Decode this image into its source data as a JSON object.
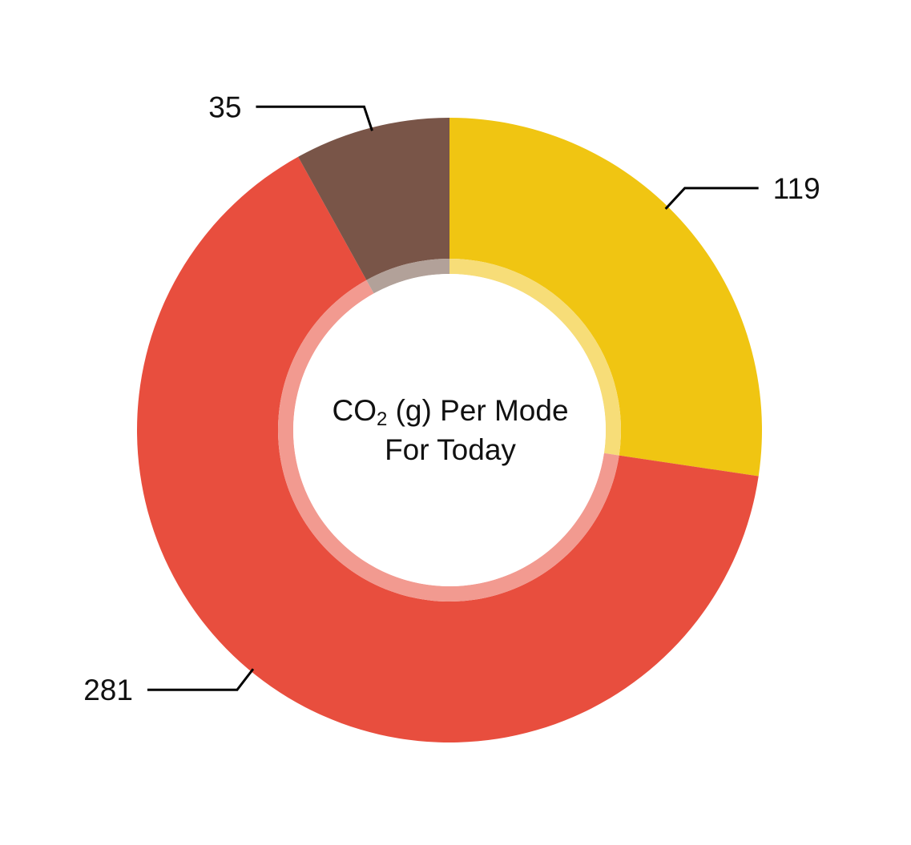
{
  "chart_data": {
    "type": "pie",
    "variant": "donut",
    "title_prefix": "CO",
    "title_subscript": "2",
    "title_suffix": " (g) Per Mode",
    "title_line2": "For Today",
    "slices": [
      {
        "value": 119,
        "label": "119",
        "color": "#F0C512",
        "inner_color": "#F7DD78"
      },
      {
        "value": 281,
        "label": "281",
        "color": "#E84E3E",
        "inner_color": "#F29A90"
      },
      {
        "value": 35,
        "label": "35",
        "color": "#795548",
        "inner_color": "#B2A199"
      }
    ],
    "start": "12 o'clock",
    "direction": "clockwise"
  }
}
